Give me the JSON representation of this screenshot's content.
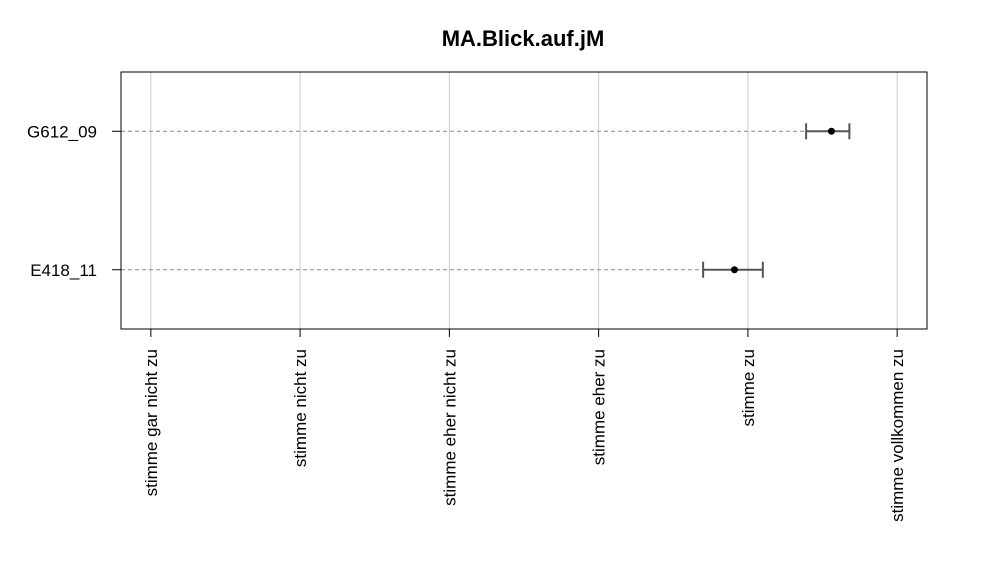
{
  "chart_data": {
    "type": "scatter",
    "title": "MA.Blick.auf.jM",
    "xlabel": "",
    "ylabel": "",
    "x_ticks": [
      {
        "value": 1,
        "label": "stimme gar nicht zu"
      },
      {
        "value": 2,
        "label": "stimme nicht zu"
      },
      {
        "value": 3,
        "label": "stimme eher nicht zu"
      },
      {
        "value": 4,
        "label": "stimme eher zu"
      },
      {
        "value": 5,
        "label": "stimme zu"
      },
      {
        "value": 6,
        "label": "stimme vollkommen zu"
      }
    ],
    "xlim": [
      0.8,
      6.2
    ],
    "categories": [
      "G612_09",
      "E418_11"
    ],
    "series": [
      {
        "points": [
          {
            "category": "G612_09",
            "mean": 5.56,
            "lower": 5.39,
            "upper": 5.68
          },
          {
            "category": "E418_11",
            "mean": 4.91,
            "lower": 4.7,
            "upper": 5.1
          }
        ]
      }
    ],
    "grid": true,
    "colors": {
      "point": "#000000",
      "errorbar": "#555555",
      "guide": "#888888",
      "grid": "#cccccc",
      "frame": "#000000"
    }
  }
}
